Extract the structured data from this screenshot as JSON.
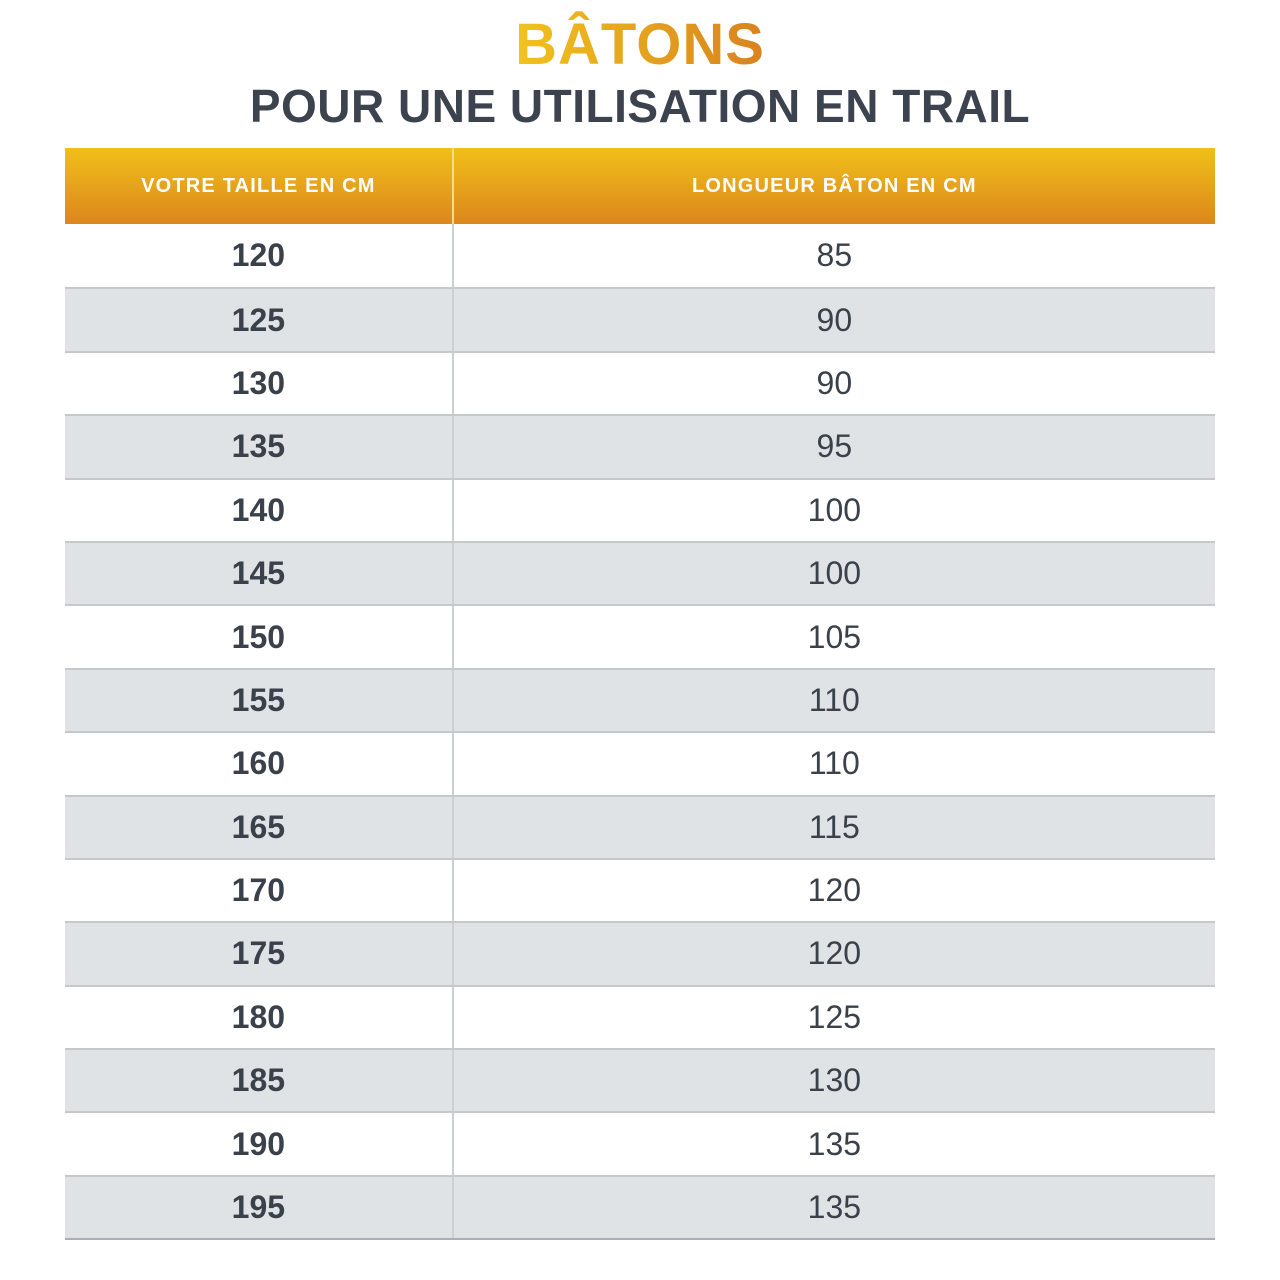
{
  "header": {
    "title": "BÂTONS",
    "subtitle": "POUR UNE UTILISATION EN TRAIL"
  },
  "colors": {
    "title_gradient_start": "#F2C31C",
    "title_gradient_end": "#D8821F",
    "header_gradient_top": "#EFC01A",
    "header_gradient_bottom": "#DD861D",
    "header_text": "#FFFFFF",
    "subtitle_color": "#3C434E",
    "cell_text": "#3A414B",
    "row_alt_bg": "#E0E3E6",
    "row_border": "#C6C9CC"
  },
  "chart_data": {
    "type": "table",
    "title": "BÂTONS POUR UNE UTILISATION EN TRAIL",
    "columns": [
      "VOTRE TAILLE EN CM",
      "LONGUEUR BÂTON EN CM"
    ],
    "rows": [
      [
        120,
        85
      ],
      [
        125,
        90
      ],
      [
        130,
        90
      ],
      [
        135,
        95
      ],
      [
        140,
        100
      ],
      [
        145,
        100
      ],
      [
        150,
        105
      ],
      [
        155,
        110
      ],
      [
        160,
        110
      ],
      [
        165,
        115
      ],
      [
        170,
        120
      ],
      [
        175,
        120
      ],
      [
        180,
        125
      ],
      [
        185,
        130
      ],
      [
        190,
        135
      ],
      [
        195,
        135
      ]
    ]
  }
}
